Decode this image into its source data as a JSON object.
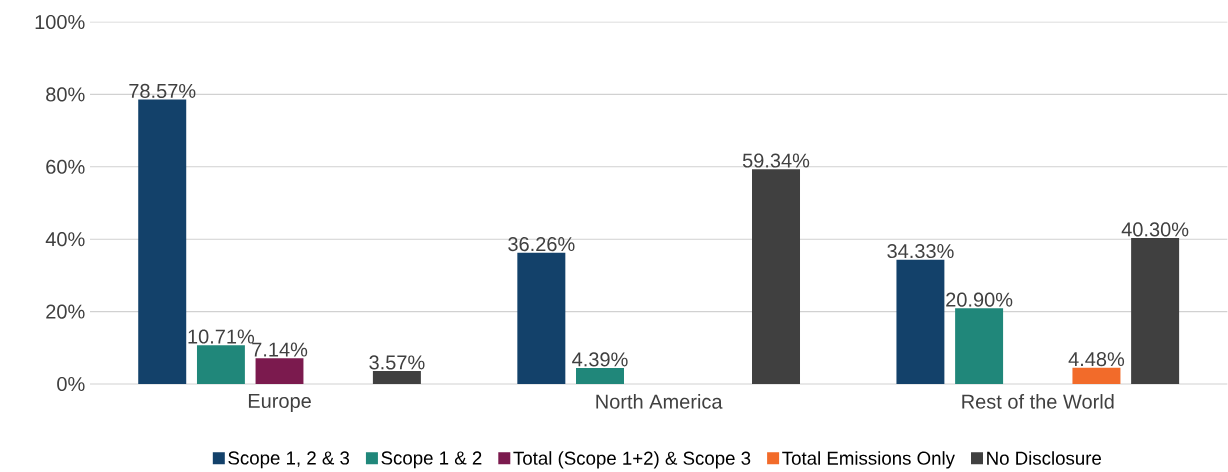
{
  "chart_data": {
    "type": "bar",
    "categories": [
      "Europe",
      "North America",
      "Rest of the World"
    ],
    "series": [
      {
        "name": "Scope 1, 2 & 3",
        "color": "#13416a",
        "values": [
          78.57,
          36.26,
          34.33
        ],
        "value_labels": [
          "78.57%",
          "36.26%",
          "34.33%"
        ]
      },
      {
        "name": "Scope 1 & 2",
        "color": "#20877a",
        "values": [
          10.71,
          4.39,
          20.9
        ],
        "value_labels": [
          "10.71%",
          "4.39%",
          "20.90%"
        ]
      },
      {
        "name": "Total (Scope 1+2) & Scope 3",
        "color": "#7b1a4e",
        "values": [
          7.14,
          null,
          null
        ],
        "value_labels": [
          "7.14%",
          null,
          null
        ]
      },
      {
        "name": "Total Emissions Only",
        "color": "#f26b2a",
        "values": [
          null,
          null,
          4.48
        ],
        "value_labels": [
          null,
          null,
          "4.48%"
        ]
      },
      {
        "name": "No Disclosure",
        "color": "#404040",
        "values": [
          3.57,
          59.34,
          40.3
        ],
        "value_labels": [
          "3.57%",
          "59.34%",
          "40.30%"
        ]
      }
    ],
    "ylim": [
      0,
      100
    ],
    "yticks": [
      {
        "value": 0,
        "label": "0%"
      },
      {
        "value": 20,
        "label": "20%"
      },
      {
        "value": 40,
        "label": "40%"
      },
      {
        "value": 60,
        "label": "60%"
      },
      {
        "value": 80,
        "label": "80%"
      },
      {
        "value": 100,
        "label": "100%"
      }
    ],
    "grid": "y",
    "legend": "bottom"
  }
}
